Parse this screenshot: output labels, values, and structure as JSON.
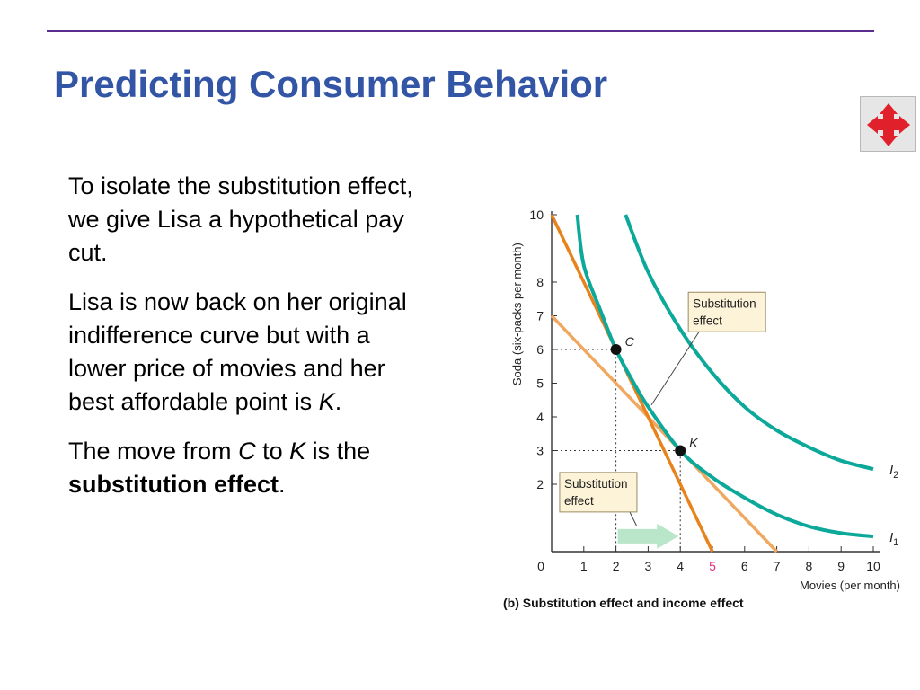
{
  "slide": {
    "title": "Predicting Consumer Behavior",
    "nav_icon": "four-arrow-move-icon",
    "paragraphs": [
      {
        "text": "To isolate the substitution effect, we give Lisa a hypothetical pay cut."
      },
      {
        "before": "Lisa is now back on her original indifference curve but with a lower price of movies and her best affordable point is ",
        "italic": "K",
        "after": "."
      },
      {
        "t1": "The move from ",
        "i1": "C",
        "t2": " to ",
        "i2": "K",
        "t3": " is the ",
        "bold": "substitution effect",
        "t4": "."
      }
    ]
  },
  "chart_data": {
    "type": "line",
    "title": "(b) Substitution effect and income effect",
    "xlabel": "Movies (per month)",
    "ylabel": "Soda (six-packs per month)",
    "xlim": [
      0,
      10
    ],
    "ylim": [
      0,
      10
    ],
    "x_ticks": [
      1,
      2,
      3,
      4,
      5,
      6,
      7,
      8,
      9,
      10
    ],
    "x_tick_labels": [
      "1",
      "2",
      "3",
      "4",
      "5",
      "6",
      "7",
      "8",
      "9",
      "10"
    ],
    "highlight_tick": {
      "value": 5,
      "color": "#e0307a"
    },
    "y_ticks": [
      2,
      3,
      4,
      5,
      6,
      7,
      8,
      10
    ],
    "y_tick_labels": [
      "2",
      "3",
      "4",
      "5",
      "6",
      "7",
      "8",
      "10"
    ],
    "origin_label": "0",
    "series": [
      {
        "name": "I1",
        "label_main": "I",
        "label_sub": "1",
        "color": "#0ca89a",
        "kind": "indifference",
        "points": [
          [
            0.8,
            10
          ],
          [
            1.0,
            8.5
          ],
          [
            1.5,
            7.2
          ],
          [
            2.0,
            6.0
          ],
          [
            2.5,
            5.1
          ],
          [
            3.0,
            4.3
          ],
          [
            4.0,
            3.0
          ],
          [
            5.0,
            2.2
          ],
          [
            6.0,
            1.6
          ],
          [
            7.0,
            1.1
          ],
          [
            8.0,
            0.75
          ],
          [
            9.0,
            0.55
          ],
          [
            10.0,
            0.45
          ]
        ]
      },
      {
        "name": "I2",
        "label_main": "I",
        "label_sub": "2",
        "color": "#0ca89a",
        "kind": "indifference",
        "points": [
          [
            2.3,
            10
          ],
          [
            3.0,
            8.3
          ],
          [
            4.0,
            6.6
          ],
          [
            5.0,
            5.3
          ],
          [
            6.0,
            4.3
          ],
          [
            7.0,
            3.6
          ],
          [
            8.0,
            3.1
          ],
          [
            9.0,
            2.7
          ],
          [
            10.0,
            2.45
          ]
        ]
      },
      {
        "name": "budget-original",
        "color": "#f0a860",
        "kind": "budget",
        "points": [
          [
            0,
            7
          ],
          [
            7,
            0
          ]
        ]
      },
      {
        "name": "budget-steep",
        "color": "#e8821a",
        "kind": "budget",
        "points": [
          [
            0,
            10
          ],
          [
            5,
            0
          ]
        ]
      }
    ],
    "points": [
      {
        "name": "C",
        "x": 2,
        "y": 6
      },
      {
        "name": "K",
        "x": 4,
        "y": 3
      }
    ],
    "annotations": [
      {
        "lines": [
          "Substitution",
          "effect"
        ],
        "box_x": 4.25,
        "box_y": 7.7,
        "pointer_to": [
          3.1,
          4.35
        ],
        "box_color": "#fdf3d8"
      },
      {
        "lines": [
          "Substitution",
          "effect"
        ],
        "box_x": 0.25,
        "box_y": 2.35,
        "pointer_to": [
          2.65,
          0.75
        ],
        "box_color": "#fdf3d8"
      }
    ],
    "substitution_arrow": {
      "from": [
        2,
        0.35
      ],
      "to": [
        4,
        0.35
      ],
      "color": "#b9e6c9"
    }
  },
  "colors": {
    "title": "#3355a5",
    "rule": "#5b2d8e",
    "nav_icon": "#e0202a"
  }
}
